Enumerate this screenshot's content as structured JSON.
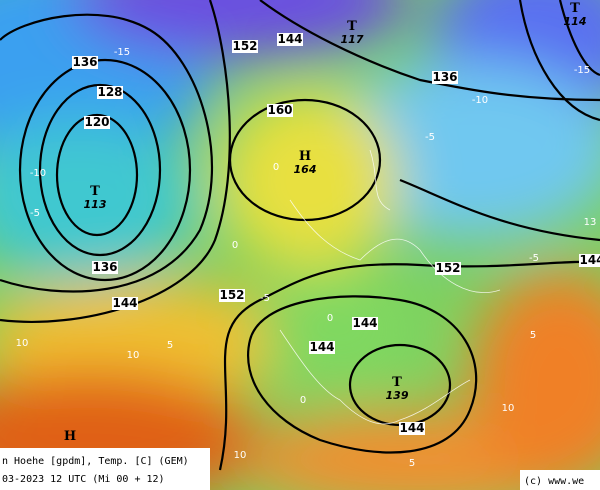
{
  "legend": {
    "line1": "n Hoehe [gpdm], Temp. [C] (GEM)",
    "line2": "03-2023 12 UTC (Mi 00 + 12)"
  },
  "copyright": "(c) www.we",
  "systems": [
    {
      "letter": "T",
      "value": 113
    },
    {
      "letter": "H",
      "value": 164
    },
    {
      "letter": "T",
      "value": 117
    },
    {
      "letter": "T",
      "value": 114
    },
    {
      "letter": "T",
      "value": 139
    },
    {
      "letter": "H"
    }
  ],
  "contour_labels": [
    136,
    128,
    120,
    136,
    144,
    160,
    152,
    144,
    136,
    152,
    152,
    144,
    144,
    144,
    144
  ],
  "temperature_labels": [
    -15,
    -10,
    -5,
    0,
    0,
    -5,
    0,
    0,
    5,
    10,
    10,
    5,
    10,
    -5,
    -10,
    -5,
    -15,
    13,
    5,
    10
  ]
}
